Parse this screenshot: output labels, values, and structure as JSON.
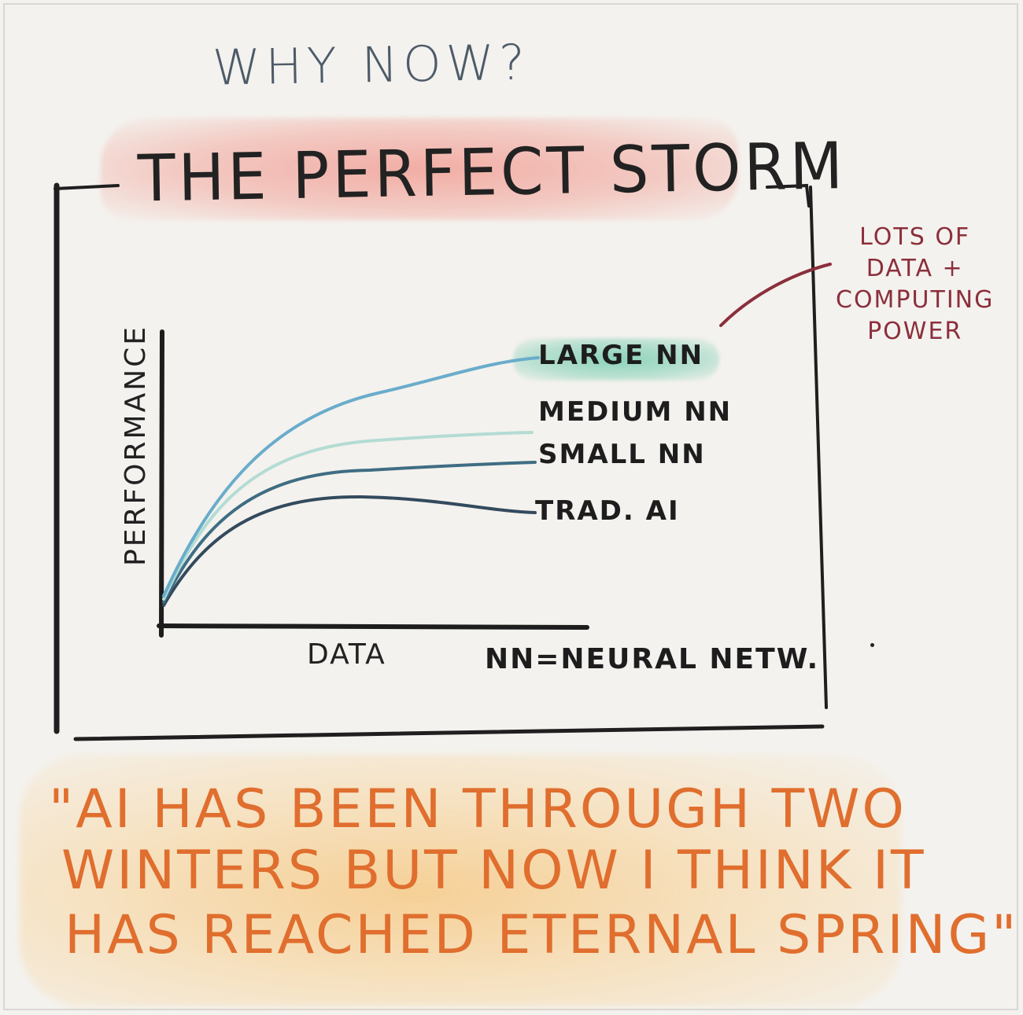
{
  "heading": "WHY NOW?",
  "title": "THE PERFECT STORM",
  "annotation": {
    "lines": [
      "LOTS OF",
      "DATA +",
      "COMPUTING",
      "POWER"
    ]
  },
  "chart": {
    "xlabel": "DATA",
    "ylabel": "PERFORMANCE",
    "footnote": "NN=NEURAL NETW.",
    "labels": {
      "large": "LARGE NN",
      "medium": "MEDIUM NN",
      "small": "SMALL NN",
      "trad": "TRAD. AI"
    }
  },
  "quote": {
    "line1": "\"AI HAS BEEN THROUGH TWO",
    "line2": "WINTERS BUT NOW I THINK IT",
    "line3": "HAS REACHED ETERNAL SPRING\""
  },
  "colors": {
    "heading": "#4d5b69",
    "title_highlight": "#f0968c",
    "quote": "#e06e2e",
    "quote_highlight": "#f6c478",
    "annotation": "#8b2f3c",
    "large_nn_highlight": "#80ceb4",
    "curve_large": "#6aaccb",
    "curve_medium": "#b3dcd3",
    "curve_small": "#3f6d84",
    "curve_trad": "#334a5e"
  }
}
